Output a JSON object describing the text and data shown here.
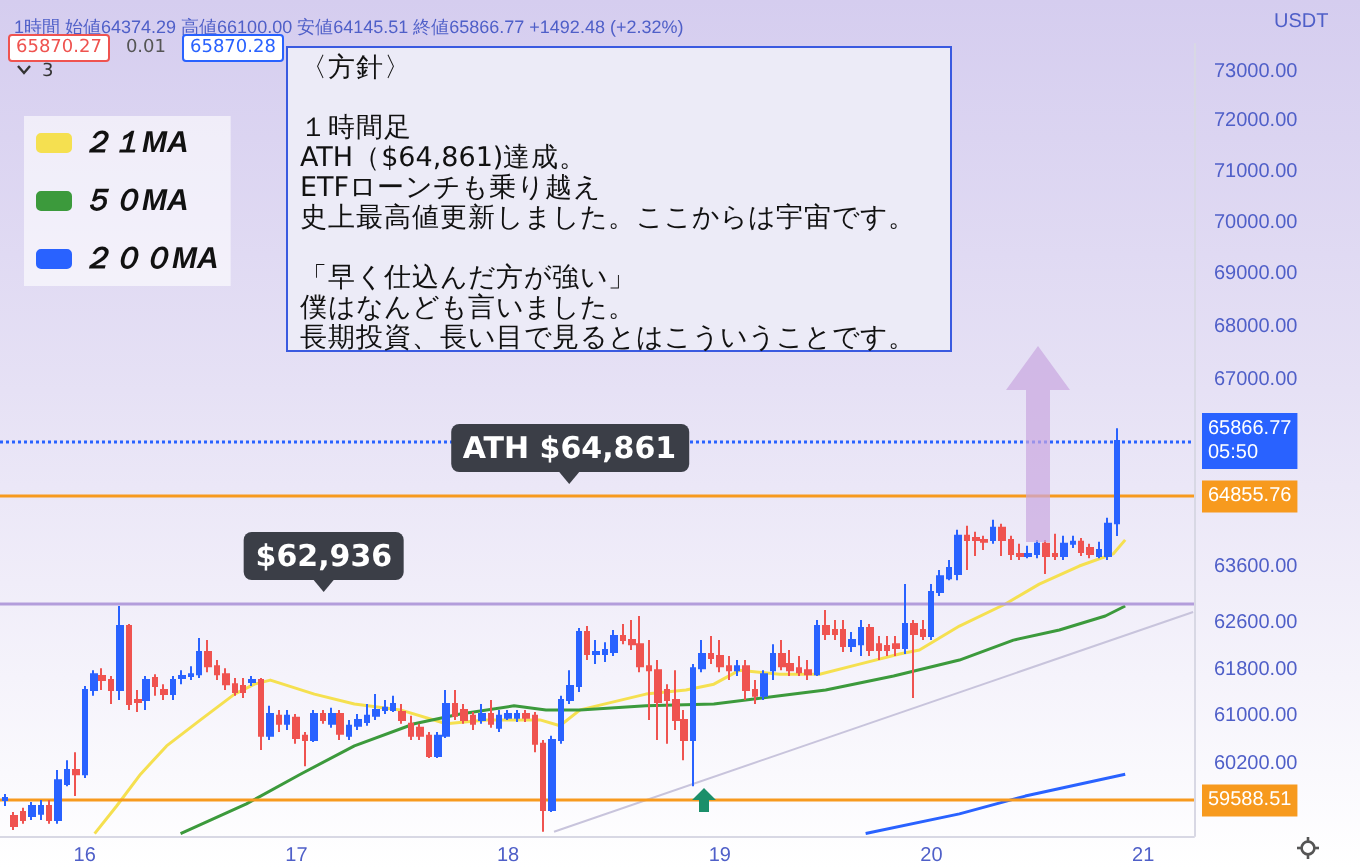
{
  "chart_data": {
    "type": "candlestick",
    "subtitle": "1時間 始値64374.29 高値66100.00 安値64145.51 終値65866.77 +1492.48 (+2.32%)",
    "ylabel": "USDT",
    "x": [
      15.625,
      15.667,
      15.708,
      15.75,
      15.792,
      15.833,
      15.875,
      15.917,
      15.958,
      16,
      16.042,
      16.083,
      16.125,
      16.167,
      16.208,
      16.25,
      16.292,
      16.333,
      16.375,
      16.417,
      16.458,
      16.5,
      16.542,
      16.583,
      16.625,
      16.667,
      16.708,
      16.75,
      16.792,
      16.833,
      16.875,
      16.917,
      16.958,
      17,
      17.042,
      17.083,
      17.125,
      17.167,
      17.208,
      17.25,
      17.292,
      17.333,
      17.375,
      17.417,
      17.458,
      17.5,
      17.542,
      17.583,
      17.625,
      17.667,
      17.708,
      17.75,
      17.792,
      17.833,
      17.875,
      17.917,
      17.958,
      18,
      18.042,
      18.083,
      18.125,
      18.167,
      18.208,
      18.25,
      18.292,
      18.333,
      18.375,
      18.417,
      18.458,
      18.5,
      18.542,
      18.583,
      18.625,
      18.667,
      18.708,
      18.75,
      18.792,
      18.833,
      18.875,
      18.917,
      18.958,
      19,
      19.042,
      19.083,
      19.125,
      19.167,
      19.208,
      19.25,
      19.292,
      19.333,
      19.375,
      19.417,
      19.458,
      19.5,
      19.542,
      19.583,
      19.625,
      19.667,
      19.708,
      19.75,
      19.792,
      19.833,
      19.875,
      19.917,
      19.958,
      20,
      20.042,
      20.083,
      20.125,
      20.167,
      20.208,
      20.25,
      20.292,
      20.333,
      20.375,
      20.417,
      20.458,
      20.5,
      20.542,
      20.583,
      20.625,
      20.667,
      20.708,
      20.75,
      20.792,
      20.833,
      20.875
    ],
    "ohlc": [
      [
        59595,
        59695,
        59495,
        59630
      ],
      [
        59330,
        59395,
        59100,
        59165
      ],
      [
        59395,
        59465,
        59200,
        59265
      ],
      [
        59330,
        59560,
        59265,
        59495
      ],
      [
        59365,
        59595,
        59265,
        59495
      ],
      [
        59495,
        59595,
        59200,
        59265
      ],
      [
        59265,
        60095,
        59200,
        59925
      ],
      [
        59860,
        60260,
        59825,
        60095
      ],
      [
        60095,
        60395,
        59660,
        60025
      ],
      [
        60025,
        61520,
        59960,
        61450
      ],
      [
        61450,
        61790,
        61350,
        61720
      ],
      [
        61690,
        61825,
        61450,
        61620
      ],
      [
        61620,
        61690,
        61210,
        61450
      ],
      [
        61450,
        62905,
        61280,
        62555
      ],
      [
        62555,
        62590,
        61110,
        61210
      ],
      [
        61280,
        61450,
        61075,
        61245
      ],
      [
        61280,
        61690,
        61110,
        61620
      ],
      [
        61655,
        61720,
        61350,
        61520
      ],
      [
        61450,
        61550,
        61280,
        61380
      ],
      [
        61380,
        61690,
        61280,
        61620
      ],
      [
        61655,
        61790,
        61550,
        61690
      ],
      [
        61690,
        61860,
        61620,
        61720
      ],
      [
        61720,
        62345,
        61655,
        62105
      ],
      [
        62105,
        62310,
        61755,
        61860
      ],
      [
        61860,
        61965,
        61620,
        61720
      ],
      [
        61720,
        61825,
        61450,
        61550
      ],
      [
        61550,
        61655,
        61350,
        61415
      ],
      [
        61520,
        61655,
        61315,
        61415
      ],
      [
        61585,
        61690,
        61520,
        61620
      ],
      [
        61620,
        61655,
        60430,
        60670
      ],
      [
        60670,
        61180,
        60600,
        61040
      ],
      [
        61010,
        61110,
        60735,
        60875
      ],
      [
        60875,
        61110,
        60770,
        61010
      ],
      [
        60975,
        61040,
        60535,
        60635
      ],
      [
        60670,
        60735,
        60160,
        60600
      ],
      [
        60600,
        61110,
        60565,
        61040
      ],
      [
        61040,
        61110,
        60875,
        60940
      ],
      [
        60875,
        61145,
        60805,
        61040
      ],
      [
        61040,
        61110,
        60600,
        60705
      ],
      [
        60670,
        60940,
        60600,
        60840
      ],
      [
        60840,
        61040,
        60770,
        60940
      ],
      [
        60905,
        61210,
        60840,
        61010
      ],
      [
        61010,
        61380,
        60940,
        61110
      ],
      [
        61110,
        61280,
        61040,
        61145
      ],
      [
        61110,
        61350,
        61075,
        61210
      ],
      [
        61075,
        61210,
        60875,
        60940
      ],
      [
        60875,
        61010,
        60600,
        60670
      ],
      [
        60805,
        60875,
        60600,
        60670
      ],
      [
        60670,
        60735,
        60295,
        60330
      ],
      [
        60330,
        60735,
        60295,
        60670
      ],
      [
        60670,
        61450,
        60635,
        61210
      ],
      [
        61210,
        61450,
        60940,
        61010
      ],
      [
        61110,
        61210,
        60875,
        60940
      ],
      [
        61010,
        61075,
        60770,
        60875
      ],
      [
        60940,
        61210,
        60875,
        61040
      ],
      [
        61040,
        61280,
        60805,
        60875
      ],
      [
        60805,
        61110,
        60735,
        61010
      ],
      [
        60975,
        61110,
        60940,
        61040
      ],
      [
        60975,
        61110,
        60905,
        61040
      ],
      [
        61040,
        61110,
        60905,
        60975
      ],
      [
        61010,
        61075,
        60395,
        60535
      ],
      [
        60535,
        60600,
        59070,
        59430
      ],
      [
        59430,
        60670,
        59395,
        60600
      ],
      [
        60600,
        61350,
        60535,
        61280
      ],
      [
        61280,
        61790,
        61210,
        61520
      ],
      [
        61520,
        62520,
        61415,
        62450
      ],
      [
        62450,
        62555,
        61965,
        62070
      ],
      [
        62070,
        62310,
        61895,
        62105
      ],
      [
        62070,
        62275,
        61930,
        62140
      ],
      [
        62105,
        62485,
        62035,
        62380
      ],
      [
        62380,
        62590,
        62240,
        62310
      ],
      [
        62310,
        62660,
        62140,
        62240
      ],
      [
        62240,
        62730,
        61755,
        61860
      ],
      [
        61860,
        62310,
        60940,
        61790
      ],
      [
        61790,
        61965,
        60600,
        61245
      ],
      [
        61450,
        61550,
        60535,
        61280
      ],
      [
        61280,
        61790,
        60770,
        60940
      ],
      [
        60940,
        61110,
        60260,
        60600
      ],
      [
        60600,
        61895,
        59825,
        61825
      ],
      [
        61825,
        62310,
        61755,
        62070
      ],
      [
        62070,
        62380,
        61895,
        62000
      ],
      [
        62035,
        62310,
        61755,
        61860
      ],
      [
        61860,
        62035,
        61620,
        61790
      ],
      [
        61790,
        61965,
        61690,
        61860
      ],
      [
        61860,
        61965,
        61280,
        61450
      ],
      [
        61450,
        61620,
        61210,
        61350
      ],
      [
        61350,
        61790,
        61280,
        61720
      ],
      [
        61790,
        62240,
        61620,
        62070
      ],
      [
        62070,
        62310,
        61790,
        61860
      ],
      [
        61895,
        62140,
        61690,
        61790
      ],
      [
        61825,
        62035,
        61690,
        61755
      ],
      [
        61790,
        61965,
        61620,
        61720
      ],
      [
        61720,
        62660,
        61690,
        62555
      ],
      [
        62555,
        62835,
        62310,
        62415
      ],
      [
        62485,
        62660,
        62310,
        62415
      ],
      [
        62485,
        62660,
        62105,
        62210
      ],
      [
        62210,
        62450,
        62105,
        62310
      ],
      [
        62240,
        62660,
        62035,
        62520
      ],
      [
        62520,
        62590,
        62035,
        62140
      ],
      [
        62240,
        62380,
        61965,
        62140
      ],
      [
        62210,
        62380,
        62035,
        62140
      ],
      [
        62240,
        62380,
        62035,
        62175
      ],
      [
        62175,
        63290,
        62070,
        62590
      ],
      [
        62590,
        62660,
        61315,
        62415
      ],
      [
        62485,
        62660,
        62310,
        62380
      ],
      [
        62380,
        63290,
        62310,
        63150
      ],
      [
        63150,
        63540,
        63080,
        63430
      ],
      [
        63395,
        63715,
        63360,
        63575
      ],
      [
        63470,
        64255,
        63360,
        64150
      ],
      [
        64150,
        64330,
        63540,
        64075
      ],
      [
        64110,
        64220,
        63790,
        64075
      ],
      [
        64075,
        64150,
        63895,
        64040
      ],
      [
        64075,
        64435,
        64005,
        64290
      ],
      [
        64290,
        64365,
        63790,
        64075
      ],
      [
        64075,
        64150,
        63715,
        63825
      ],
      [
        63825,
        64005,
        63715,
        63790
      ],
      [
        63790,
        63970,
        63750,
        63825
      ],
      [
        63825,
        64075,
        63750,
        64005
      ],
      [
        64005,
        64075,
        63470,
        63790
      ],
      [
        63825,
        64185,
        63715,
        63790
      ],
      [
        63790,
        64150,
        63715,
        64005
      ],
      [
        64005,
        64150,
        63930,
        64040
      ],
      [
        64040,
        64110,
        63790,
        63860
      ],
      [
        63930,
        64005,
        63750,
        63825
      ],
      [
        63790,
        64040,
        63750,
        63895
      ],
      [
        63790,
        64470,
        63715,
        64365
      ],
      [
        64374.29,
        66100,
        64145.51,
        65866.77
      ]
    ],
    "series": [
      {
        "type": "line",
        "name": "２１MA",
        "color": "#f5e050",
        "x": [
          16.047,
          16.151,
          16.264,
          16.387,
          16.547,
          16.708,
          16.802,
          16.877,
          17.085,
          17.274,
          17.491,
          17.708,
          17.896,
          18.151,
          18.245,
          18.34,
          18.651,
          18.84,
          18.972,
          19.094,
          19.283,
          19.472,
          19.66,
          19.849,
          19.943,
          20.132,
          20.349,
          20.509,
          20.698,
          20.858,
          20.915
        ],
        "values": [
          59040,
          59495,
          60025,
          60500,
          60940,
          61380,
          61550,
          61620,
          61380,
          61210,
          61110,
          60875,
          60940,
          60940,
          60840,
          61110,
          61380,
          61450,
          61550,
          61790,
          61720,
          61720,
          61895,
          62070,
          62140,
          62555,
          62940,
          63290,
          63610,
          63825,
          64075
        ]
      },
      {
        "type": "line",
        "name": "５０MA",
        "color": "#3c9a3c",
        "x": [
          16.453,
          16.764,
          17.019,
          17.274,
          17.557,
          17.774,
          18.028,
          18.179,
          18.34,
          18.651,
          18.972,
          19.283,
          19.5,
          19.821,
          20.132,
          20.387,
          20.604,
          20.821,
          20.915
        ],
        "values": [
          59040,
          59530,
          60025,
          60500,
          60875,
          61040,
          61180,
          61110,
          61110,
          61180,
          61210,
          61350,
          61450,
          61690,
          61965,
          62310,
          62485,
          62730,
          62905
        ]
      },
      {
        "type": "line",
        "name": "２００MA",
        "color": "#2962ff",
        "x": [
          19.689,
          20.132,
          20.443,
          20.915
        ],
        "values": [
          59040,
          59365,
          59660,
          60025
        ]
      },
      {
        "type": "line",
        "color": "#c8c4dc",
        "x": [
          18.217,
          21.236
        ],
        "values": [
          59070,
          62800
        ]
      }
    ],
    "xlim": [
      15.6,
      21.24
    ],
    "xticks": [
      16,
      17,
      18,
      19,
      20,
      21
    ],
    "ylim": [
      59000,
      73570
    ],
    "log": "y",
    "yticks": [
      {
        "value": 73000,
        "label": "73000.00"
      },
      {
        "value": 72000,
        "label": "72000.00"
      },
      {
        "value": 71000,
        "label": "71000.00"
      },
      {
        "value": 70000,
        "label": "70000.00"
      },
      {
        "value": 69000,
        "label": "69000.00"
      },
      {
        "value": 68000,
        "label": "68000.00"
      },
      {
        "value": 67000,
        "label": "67000.00"
      },
      {
        "value": 63600,
        "label": "63600.00"
      },
      {
        "value": 62600,
        "label": "62600.00"
      },
      {
        "value": 61800,
        "label": "61800.00"
      },
      {
        "value": 61000,
        "label": "61000.00"
      },
      {
        "value": 60200,
        "label": "60200.00"
      }
    ],
    "ref_lines": [
      {
        "axis": "y",
        "value": 65866.77,
        "label": "65866.77\n05:50",
        "color": "#2962ff",
        "line_style": "dotted"
      },
      {
        "axis": "y",
        "value": 64855.76,
        "label": "64855.76",
        "color": "#f79a1e"
      },
      {
        "axis": "y",
        "value": 62936,
        "color": "#b39ddb"
      },
      {
        "axis": "y",
        "value": 59588.51,
        "label": "59588.51",
        "color": "#f79a1e"
      }
    ],
    "annotations": [
      "〈方針〉",
      "１時間足",
      "ATH（$64,861)達成。",
      "ETFローンチも乗り越え",
      "史上最高値更新しました。ここからは宇宙です。",
      "「早く仕込んだ方が強い」",
      "僕はなんども言いました。",
      "長期投資、長い目で見るとはこういうことです。",
      "65870.27",
      "0.01",
      "65870.28",
      "3",
      {
        "text": "ATH $64,861",
        "x": 18.29,
        "y": 64861
      },
      {
        "text": "$62,936",
        "x": 17.13,
        "y": 62936
      }
    ],
    "grid": false,
    "legend": "top left",
    "marker": "none"
  }
}
